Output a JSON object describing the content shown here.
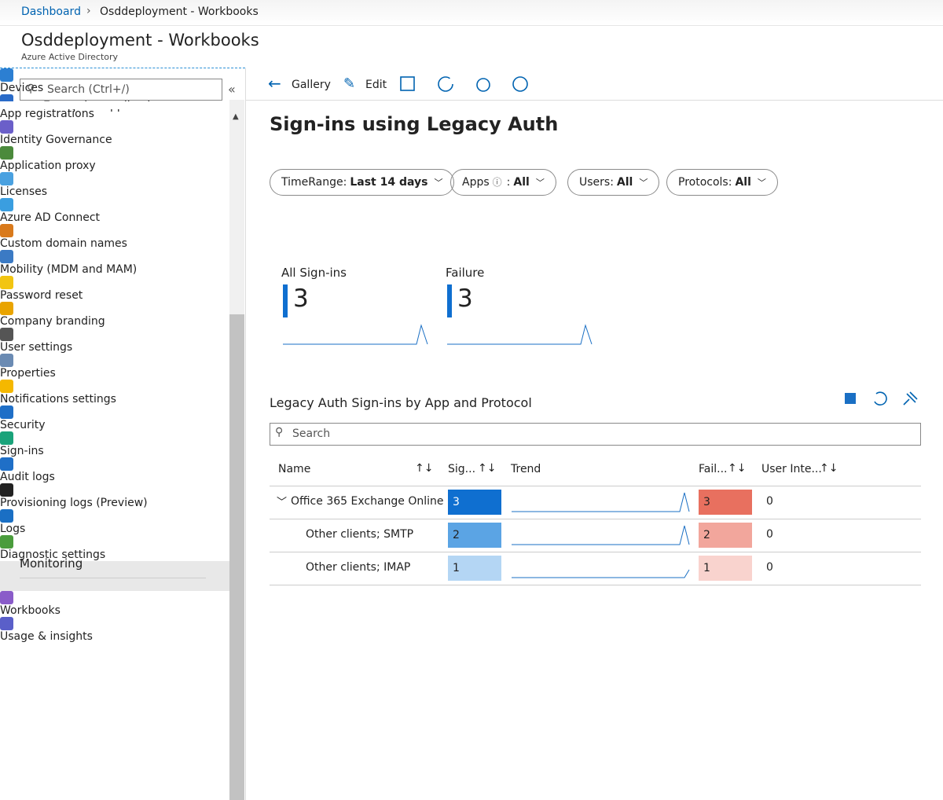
{
  "breadcrumb": [
    "Dashboard",
    "Osddeployment - Workbooks"
  ],
  "header": {
    "title": "Osddeployment - Workbooks",
    "subtitle": "Azure Active Directory"
  },
  "sidebar": {
    "search_placeholder": "Search (Ctrl+/)",
    "partial_item": "Enterprise applications",
    "items": [
      "Devices",
      "App registrations",
      "Identity Governance",
      "Application proxy",
      "Licenses",
      "Azure AD Connect",
      "Custom domain names",
      "Mobility (MDM and MAM)",
      "Password reset",
      "Company branding",
      "User settings",
      "Properties",
      "Notifications settings",
      "Security"
    ],
    "section": "Monitoring",
    "monitoring_items": [
      "Sign-ins",
      "Audit logs",
      "Provisioning logs (Preview)",
      "Logs",
      "Diagnostic settings",
      "Workbooks",
      "Usage & insights"
    ]
  },
  "toolbar": [
    "Gallery",
    "Edit"
  ],
  "workbook": {
    "title": "Sign-ins using Legacy Auth",
    "filters": [
      {
        "label": "TimeRange:",
        "value": "Last 14 days"
      },
      {
        "label": "Apps",
        "label_suffix": ":",
        "value": "All"
      },
      {
        "label": "Users:",
        "value": "All"
      },
      {
        "label": "Protocols:",
        "value": "All"
      }
    ],
    "tiles": [
      {
        "label": "All Sign-ins",
        "value": 3
      },
      {
        "label": "Failure",
        "value": 3
      }
    ],
    "grid": {
      "title": "Legacy Auth Sign-ins by App and Protocol",
      "search_placeholder": "Search",
      "columns": [
        "Name",
        "Sig...",
        "Trend",
        "Fail...",
        "User Inte..."
      ],
      "rows": [
        {
          "name": "Office 365 Exchange Online",
          "signins": 3,
          "failures": 3,
          "user_interrupts": 0
        },
        {
          "name": "Other clients; SMTP",
          "signins": 2,
          "failures": 2,
          "user_interrupts": 0
        },
        {
          "name": "Other clients; IMAP",
          "signins": 1,
          "failures": 1,
          "user_interrupts": 0
        }
      ]
    }
  }
}
